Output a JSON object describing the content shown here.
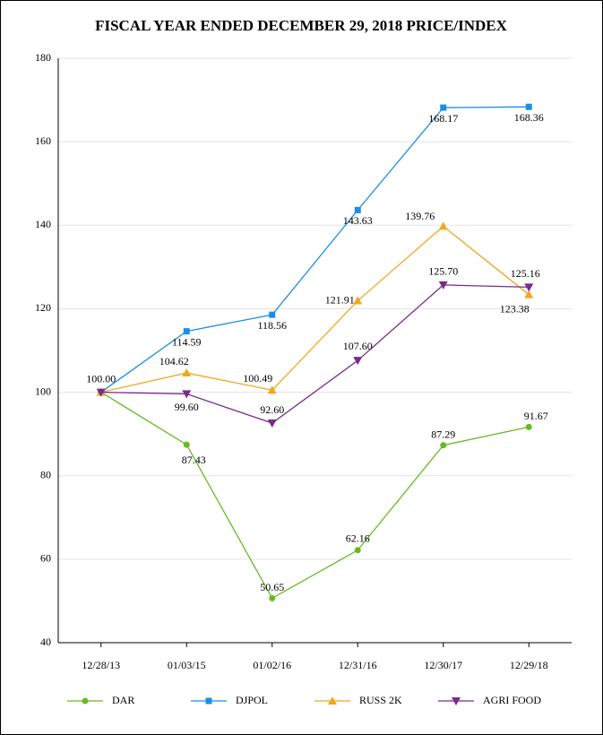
{
  "chart_data": {
    "type": "line",
    "title": "FISCAL YEAR ENDED DECEMBER 29, 2018 PRICE/INDEX",
    "categories": [
      "12/28/13",
      "01/03/15",
      "01/02/16",
      "12/31/16",
      "12/30/17",
      "12/29/18"
    ],
    "series": [
      {
        "name": "DAR",
        "color": "#66bb22",
        "marker": "circle",
        "values": [
          100,
          87.43,
          50.65,
          62.16,
          87.29,
          91.67
        ],
        "value_labels": [
          "100.00",
          "87.43",
          "50.65",
          "62.16",
          "87.29",
          "91.67"
        ]
      },
      {
        "name": "DJPOL",
        "color": "#1a8ee6",
        "marker": "square",
        "values": [
          100,
          114.59,
          118.56,
          143.63,
          168.17,
          168.36
        ],
        "value_labels": [
          null,
          "114.59",
          "118.56",
          "143.63",
          "168.17",
          "168.36"
        ]
      },
      {
        "name": "RUSS 2K",
        "color": "#f0a820",
        "marker": "triangle-up",
        "values": [
          100,
          104.62,
          100.49,
          121.91,
          139.76,
          123.38
        ],
        "value_labels": [
          null,
          "104.62",
          "100.49",
          "121.91",
          "139.76",
          "123.38"
        ]
      },
      {
        "name": "AGRI FOOD",
        "color": "#7a2a8c",
        "marker": "triangle-down",
        "values": [
          100,
          99.6,
          92.6,
          107.6,
          125.7,
          125.16
        ],
        "value_labels": [
          null,
          "99.60",
          "92.60",
          "107.60",
          "125.70",
          "125.16"
        ]
      }
    ],
    "ylim": [
      40,
      180
    ],
    "yticks": [
      40,
      60,
      80,
      100,
      120,
      140,
      160,
      180
    ],
    "grid": true,
    "legend": "bottom"
  }
}
